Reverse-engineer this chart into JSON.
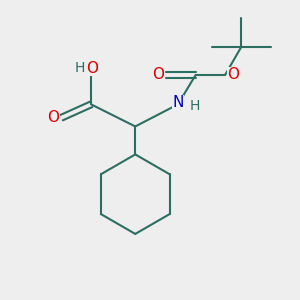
{
  "bg_color": "#eeeeee",
  "bond_color": "#2d6e62",
  "O_color": "#dd0000",
  "N_color": "#0000bb",
  "H_color": "#2d6e62",
  "lw": 1.5,
  "fig_size": [
    3.0,
    3.0
  ],
  "dpi": 100,
  "xlim": [
    0,
    10
  ],
  "ylim": [
    0,
    10
  ]
}
